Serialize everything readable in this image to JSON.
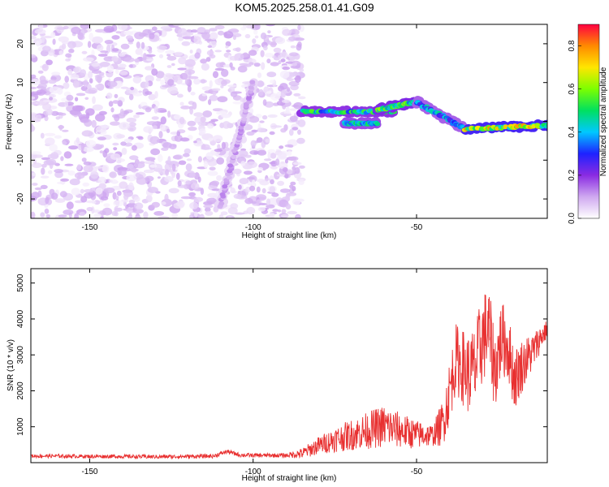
{
  "title": "KOM5.2025.258.01.41.G09",
  "colors": {
    "snr_line": "#e83030",
    "colorbar_stops": [
      "#ffffff",
      "#cfa8f0",
      "#8a2be2",
      "#1e22ff",
      "#00c8ff",
      "#00e060",
      "#7cff00",
      "#ffe600",
      "#ff8a00",
      "#ff0040"
    ]
  },
  "chart_data": [
    {
      "type": "heatmap",
      "name": "spectrogram",
      "xlabel": "Height of straight line (km)",
      "ylabel": "Frequency (Hz)",
      "xlim": [
        -168,
        -10
      ],
      "ylim": [
        -25,
        25
      ],
      "xticks": [
        -150,
        -100,
        -50
      ],
      "yticks": [
        -20,
        -10,
        0,
        10,
        20
      ],
      "colorbar": {
        "label": "Normalized spectral amplitude",
        "range": [
          0,
          0.9
        ],
        "ticks": [
          0.0,
          0.2,
          0.4,
          0.6,
          0.8
        ]
      },
      "noise_region": {
        "x": [
          -168,
          -85
        ],
        "y": [
          -25,
          25
        ],
        "amplitude": 0.05
      },
      "features": [
        {
          "x": [
            -110,
            -100
          ],
          "y": [
            -22,
            10
          ],
          "amplitude": 0.13
        },
        {
          "x": [
            -85,
            -57
          ],
          "y": [
            2.5,
            2.5
          ],
          "amplitude": 0.55
        },
        {
          "x": [
            -72,
            -62
          ],
          "y": [
            -0.5,
            -0.5
          ],
          "amplitude": 0.5
        },
        {
          "x": [
            -62,
            -50
          ],
          "y": [
            3,
            5
          ],
          "amplitude": 0.6
        },
        {
          "x": [
            -50,
            -35
          ],
          "y": [
            5,
            -2
          ],
          "amplitude": 0.45
        },
        {
          "x": [
            -35,
            -10
          ],
          "y": [
            -2,
            -1
          ],
          "amplitude": 0.75
        }
      ]
    },
    {
      "type": "line",
      "name": "snr",
      "xlabel": "Height of straight line (km)",
      "ylabel": "SNR (10 * v/v)",
      "xlim": [
        -168,
        -10
      ],
      "ylim": [
        0,
        5400
      ],
      "xticks": [
        -150,
        -100,
        -50
      ],
      "yticks": [
        1000,
        2000,
        3000,
        4000,
        5000
      ],
      "envelope": {
        "x": [
          -168,
          -160,
          -150,
          -140,
          -130,
          -120,
          -112,
          -108,
          -104,
          -100,
          -95,
          -90,
          -85,
          -80,
          -75,
          -70,
          -65,
          -60,
          -55,
          -50,
          -45,
          -42,
          -40,
          -38,
          -36,
          -34,
          -32,
          -30,
          -28,
          -26,
          -24,
          -22,
          -20,
          -18,
          -16,
          -14,
          -12,
          -10
        ],
        "y": [
          200,
          200,
          190,
          190,
          180,
          190,
          200,
          330,
          230,
          220,
          220,
          220,
          300,
          550,
          750,
          900,
          1050,
          1200,
          1050,
          900,
          850,
          1300,
          2200,
          3200,
          3000,
          2800,
          3000,
          3800,
          4100,
          2900,
          3800,
          3500,
          2600,
          2900,
          3100,
          3300,
          3600,
          3800
        ]
      },
      "noise_amplitude": {
        "x": [
          -168,
          -90,
          -85,
          -75,
          -60,
          -50,
          -45,
          -40,
          -30,
          -20,
          -10
        ],
        "y": [
          50,
          60,
          150,
          350,
          600,
          400,
          300,
          900,
          1300,
          900,
          250
        ]
      }
    }
  ]
}
